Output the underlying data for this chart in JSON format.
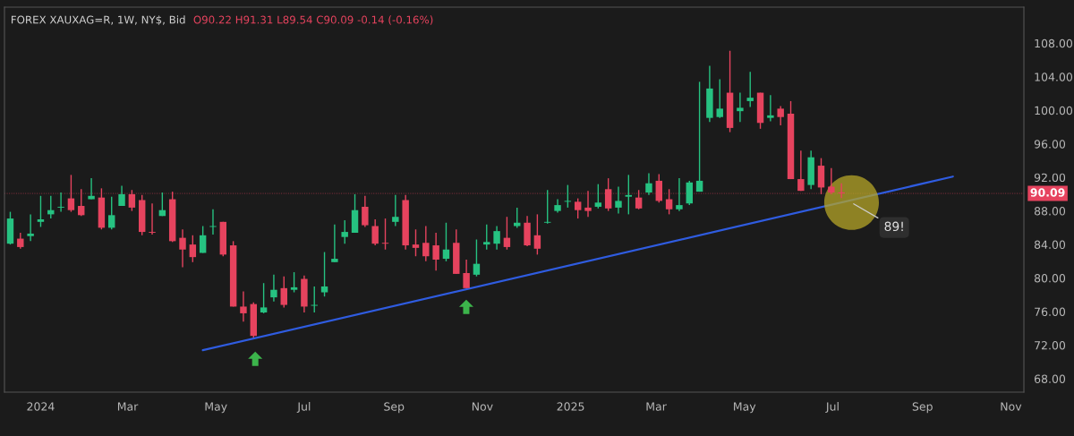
{
  "chart_data": {
    "type": "candlestick",
    "title": "FOREX XAUXAG=R, 1W, NY$, Bid",
    "subtitle": "O90.22 H91.31 L89.54 C90.09 -0.14 (-0.16%)",
    "x": [
      "2023-12-11",
      "2023-12-18",
      "2023-12-25",
      "2024-01-01",
      "2024-01-08",
      "2024-01-15",
      "2024-01-22",
      "2024-01-29",
      "2024-02-05",
      "2024-02-12",
      "2024-02-19",
      "2024-02-26",
      "2024-03-04",
      "2024-03-11",
      "2024-03-18",
      "2024-03-25",
      "2024-04-01",
      "2024-04-08",
      "2024-04-15",
      "2024-04-22",
      "2024-04-29",
      "2024-05-06",
      "2024-05-13",
      "2024-05-20",
      "2024-05-27",
      "2024-06-03",
      "2024-06-10",
      "2024-06-17",
      "2024-06-24",
      "2024-07-01",
      "2024-07-08",
      "2024-07-15",
      "2024-07-22",
      "2024-07-29",
      "2024-08-05",
      "2024-08-12",
      "2024-08-19",
      "2024-08-26",
      "2024-09-02",
      "2024-09-09",
      "2024-09-16",
      "2024-09-23",
      "2024-09-30",
      "2024-10-07",
      "2024-10-14",
      "2024-10-21",
      "2024-10-28",
      "2024-11-04",
      "2024-11-11",
      "2024-11-18",
      "2024-11-25",
      "2024-12-02",
      "2024-12-09",
      "2024-12-16",
      "2024-12-23",
      "2024-12-30",
      "2025-01-06",
      "2025-01-13",
      "2025-01-20",
      "2025-01-27",
      "2025-02-03",
      "2025-02-10",
      "2025-02-17",
      "2025-02-24",
      "2025-03-03",
      "2025-03-10",
      "2025-03-17",
      "2025-03-24",
      "2025-03-31",
      "2025-04-07",
      "2025-04-14",
      "2025-04-21",
      "2025-04-28",
      "2025-05-05",
      "2025-05-12",
      "2025-05-19",
      "2025-05-26",
      "2025-06-02",
      "2025-06-09",
      "2025-06-16",
      "2025-06-23",
      "2025-06-30",
      "2025-07-07"
    ],
    "ohlc": [
      [
        84.1,
        87.9,
        84.0,
        87.1
      ],
      [
        84.7,
        85.4,
        83.5,
        83.7
      ],
      [
        85.0,
        87.6,
        84.4,
        85.3
      ],
      [
        86.7,
        89.8,
        86.1,
        87.0
      ],
      [
        87.6,
        89.8,
        87.1,
        88.1
      ],
      [
        88.4,
        90.2,
        87.9,
        88.5
      ],
      [
        89.5,
        92.3,
        87.9,
        88.1
      ],
      [
        88.6,
        90.6,
        87.4,
        87.5
      ],
      [
        89.4,
        91.9,
        89.4,
        89.8
      ],
      [
        89.6,
        90.7,
        85.8,
        86.0
      ],
      [
        86.0,
        89.7,
        85.8,
        87.5
      ],
      [
        88.6,
        91.0,
        88.6,
        90.0
      ],
      [
        90.0,
        90.5,
        88.0,
        88.4
      ],
      [
        89.3,
        89.9,
        85.1,
        85.5
      ],
      [
        85.5,
        88.9,
        85.2,
        85.4
      ],
      [
        87.4,
        90.2,
        87.4,
        88.1
      ],
      [
        89.4,
        90.3,
        84.3,
        84.4
      ],
      [
        84.8,
        85.8,
        81.3,
        83.4
      ],
      [
        84.0,
        85.1,
        81.9,
        82.5
      ],
      [
        83.0,
        86.2,
        83.0,
        85.1
      ],
      [
        86.1,
        88.2,
        85.2,
        86.2
      ],
      [
        86.7,
        86.7,
        82.6,
        82.8
      ],
      [
        83.9,
        84.4,
        76.6,
        76.6
      ],
      [
        76.6,
        78.4,
        74.8,
        75.8
      ],
      [
        76.9,
        77.1,
        72.9,
        73.1
      ],
      [
        75.9,
        79.4,
        75.8,
        76.5
      ],
      [
        77.7,
        80.4,
        77.2,
        78.6
      ],
      [
        78.8,
        80.2,
        76.5,
        76.8
      ],
      [
        78.6,
        80.7,
        78.3,
        78.9
      ],
      [
        79.9,
        80.3,
        75.9,
        76.6
      ],
      [
        76.7,
        79.0,
        75.9,
        76.8
      ],
      [
        78.3,
        83.1,
        77.8,
        79.0
      ],
      [
        81.9,
        86.4,
        81.9,
        82.3
      ],
      [
        84.9,
        86.9,
        84.1,
        85.5
      ],
      [
        85.4,
        90.0,
        85.4,
        88.1
      ],
      [
        88.5,
        89.8,
        86.1,
        86.3
      ],
      [
        86.2,
        87.0,
        83.9,
        84.1
      ],
      [
        84.2,
        87.1,
        83.4,
        84.1
      ],
      [
        86.7,
        89.9,
        86.2,
        87.3
      ],
      [
        89.3,
        89.9,
        83.4,
        83.9
      ],
      [
        84.0,
        85.8,
        82.6,
        83.6
      ],
      [
        84.2,
        86.2,
        82.0,
        82.6
      ],
      [
        83.9,
        85.4,
        80.9,
        82.2
      ],
      [
        82.3,
        86.6,
        82.0,
        83.4
      ],
      [
        84.2,
        85.8,
        80.5,
        80.5
      ],
      [
        80.6,
        82.2,
        78.8,
        78.8
      ],
      [
        80.4,
        84.6,
        80.2,
        81.7
      ],
      [
        84.0,
        86.4,
        83.4,
        84.3
      ],
      [
        84.1,
        86.2,
        83.4,
        85.6
      ],
      [
        84.8,
        87.3,
        83.4,
        83.7
      ],
      [
        86.2,
        88.4,
        86.0,
        86.6
      ],
      [
        86.6,
        87.4,
        83.8,
        83.9
      ],
      [
        85.1,
        87.6,
        82.8,
        83.5
      ],
      [
        86.6,
        90.5,
        86.5,
        86.7
      ],
      [
        88.0,
        89.4,
        87.8,
        88.7
      ],
      [
        89.1,
        91.1,
        88.4,
        89.2
      ],
      [
        89.1,
        89.5,
        87.1,
        88.1
      ],
      [
        88.4,
        90.4,
        87.3,
        88.0
      ],
      [
        88.5,
        91.2,
        88.3,
        89.0
      ],
      [
        90.6,
        91.9,
        88.0,
        88.3
      ],
      [
        88.4,
        90.9,
        87.7,
        89.2
      ],
      [
        89.7,
        92.3,
        87.6,
        89.9
      ],
      [
        89.6,
        90.5,
        88.2,
        88.3
      ],
      [
        90.2,
        92.5,
        89.9,
        91.3
      ],
      [
        91.6,
        92.4,
        89.0,
        89.2
      ],
      [
        89.4,
        90.6,
        87.6,
        88.2
      ],
      [
        88.2,
        91.9,
        88.0,
        88.7
      ],
      [
        88.9,
        91.6,
        88.7,
        91.4
      ],
      [
        90.3,
        103.4,
        90.3,
        91.6
      ],
      [
        99.1,
        105.3,
        98.6,
        102.6
      ],
      [
        99.2,
        103.7,
        99.1,
        100.2
      ],
      [
        102.1,
        107.1,
        97.4,
        97.9
      ],
      [
        99.9,
        102.1,
        98.6,
        100.3
      ],
      [
        101.1,
        104.6,
        100.4,
        101.5
      ],
      [
        102.1,
        102.1,
        97.8,
        98.5
      ],
      [
        99.1,
        101.8,
        98.7,
        99.4
      ],
      [
        100.2,
        100.5,
        98.2,
        99.2
      ],
      [
        99.6,
        101.1,
        91.8,
        91.8
      ],
      [
        91.8,
        95.2,
        90.4,
        90.4
      ],
      [
        91.1,
        95.2,
        90.6,
        94.4
      ],
      [
        93.4,
        94.3,
        90.0,
        90.8
      ],
      [
        90.9,
        93.1,
        90.0,
        90.2
      ],
      [
        90.22,
        91.31,
        89.54,
        90.09
      ]
    ],
    "colors": [
      "#26c281",
      "#e6435e",
      "#26c281",
      "#26c281",
      "#26c281",
      "#26c281",
      "#e6435e",
      "#e6435e",
      "#26c281",
      "#e6435e",
      "#26c281",
      "#26c281",
      "#e6435e",
      "#e6435e",
      "#e6435e",
      "#26c281",
      "#e6435e",
      "#e6435e",
      "#e6435e",
      "#26c281",
      "#26c281",
      "#e6435e",
      "#e6435e",
      "#e6435e",
      "#e6435e",
      "#26c281",
      "#26c281",
      "#e6435e",
      "#26c281",
      "#e6435e",
      "#26c281",
      "#26c281",
      "#26c281",
      "#26c281",
      "#26c281",
      "#e6435e",
      "#e6435e",
      "#e6435e",
      "#26c281",
      "#e6435e",
      "#e6435e",
      "#e6435e",
      "#e6435e",
      "#26c281",
      "#e6435e",
      "#e6435e",
      "#26c281",
      "#26c281",
      "#26c281",
      "#e6435e",
      "#26c281",
      "#e6435e",
      "#e6435e",
      "#26c281",
      "#26c281",
      "#26c281",
      "#e6435e",
      "#e6435e",
      "#26c281",
      "#e6435e",
      "#26c281",
      "#26c281",
      "#e6435e",
      "#26c281",
      "#e6435e",
      "#e6435e",
      "#26c281",
      "#26c281",
      "#26c281",
      "#26c281",
      "#26c281",
      "#e6435e",
      "#26c281",
      "#26c281",
      "#e6435e",
      "#26c281",
      "#e6435e",
      "#e6435e",
      "#e6435e",
      "#26c281",
      "#e6435e",
      "#e6435e",
      "#e6435e"
    ],
    "series": [
      {
        "type": "line",
        "x": [
          "2024-04-22",
          "2025-09-22"
        ],
        "values": [
          71.4,
          92.1
        ],
        "color": "#2f5ce0"
      }
    ],
    "xlim": [
      "2023-12-07",
      "2025-11-10"
    ],
    "xticks": [
      {
        "value": "2024-01-01",
        "label": "2024"
      },
      {
        "value": "2024-03-01",
        "label": "Mar"
      },
      {
        "value": "2024-05-01",
        "label": "May"
      },
      {
        "value": "2024-07-01",
        "label": "Jul"
      },
      {
        "value": "2024-09-01",
        "label": "Sep"
      },
      {
        "value": "2024-11-01",
        "label": "Nov"
      },
      {
        "value": "2025-01-01",
        "label": "2025"
      },
      {
        "value": "2025-03-01",
        "label": "Mar"
      },
      {
        "value": "2025-05-01",
        "label": "May"
      },
      {
        "value": "2025-07-01",
        "label": "Jul"
      },
      {
        "value": "2025-09-01",
        "label": "Sep"
      },
      {
        "value": "2025-11-01",
        "label": "Nov"
      }
    ],
    "ylim": [
      66.4,
      112.3
    ],
    "yticks": [
      {
        "value": 68,
        "label": "68.00"
      },
      {
        "value": 72,
        "label": "72.00"
      },
      {
        "value": 76,
        "label": "76.00"
      },
      {
        "value": 80,
        "label": "80.00"
      },
      {
        "value": 84,
        "label": "84.00"
      },
      {
        "value": 88,
        "label": "88.00"
      },
      {
        "value": 92,
        "label": "92.00"
      },
      {
        "value": 96,
        "label": "96.00"
      },
      {
        "value": 100,
        "label": "100.00"
      },
      {
        "value": 104,
        "label": "104.00"
      },
      {
        "value": 108,
        "label": "108.00"
      }
    ],
    "ref_lines": [
      {
        "axis": "y",
        "value": 90.09,
        "label": "90.09",
        "color": "#e6435e",
        "line_style": "dotted"
      }
    ],
    "annotations": [
      {
        "text": "89!",
        "x": "2025-07-14",
        "y": 89.0
      }
    ],
    "grid": false
  }
}
